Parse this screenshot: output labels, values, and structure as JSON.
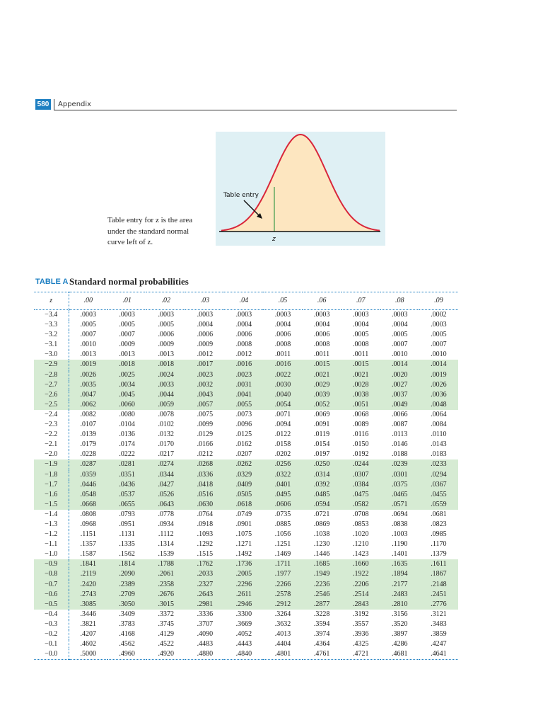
{
  "header": {
    "page_number": "580",
    "section": "Appendix"
  },
  "figure": {
    "label": "Table entry",
    "axis_label": "z",
    "caption": "Table entry for z is the area under the standard normal curve left of z."
  },
  "table": {
    "label": "TABLE A",
    "title": "Standard normal probabilities",
    "columns": [
      "z",
      ".00",
      ".01",
      ".02",
      ".03",
      ".04",
      ".05",
      ".06",
      ".07",
      ".08",
      ".09"
    ],
    "rows": [
      [
        "−3.4",
        ".0003",
        ".0003",
        ".0003",
        ".0003",
        ".0003",
        ".0003",
        ".0003",
        ".0003",
        ".0003",
        ".0002"
      ],
      [
        "−3.3",
        ".0005",
        ".0005",
        ".0005",
        ".0004",
        ".0004",
        ".0004",
        ".0004",
        ".0004",
        ".0004",
        ".0003"
      ],
      [
        "−3.2",
        ".0007",
        ".0007",
        ".0006",
        ".0006",
        ".0006",
        ".0006",
        ".0006",
        ".0005",
        ".0005",
        ".0005"
      ],
      [
        "−3.1",
        ".0010",
        ".0009",
        ".0009",
        ".0009",
        ".0008",
        ".0008",
        ".0008",
        ".0008",
        ".0007",
        ".0007"
      ],
      [
        "−3.0",
        ".0013",
        ".0013",
        ".0013",
        ".0012",
        ".0012",
        ".0011",
        ".0011",
        ".0011",
        ".0010",
        ".0010"
      ],
      [
        "−2.9",
        ".0019",
        ".0018",
        ".0018",
        ".0017",
        ".0016",
        ".0016",
        ".0015",
        ".0015",
        ".0014",
        ".0014"
      ],
      [
        "−2.8",
        ".0026",
        ".0025",
        ".0024",
        ".0023",
        ".0023",
        ".0022",
        ".0021",
        ".0021",
        ".0020",
        ".0019"
      ],
      [
        "−2.7",
        ".0035",
        ".0034",
        ".0033",
        ".0032",
        ".0031",
        ".0030",
        ".0029",
        ".0028",
        ".0027",
        ".0026"
      ],
      [
        "−2.6",
        ".0047",
        ".0045",
        ".0044",
        ".0043",
        ".0041",
        ".0040",
        ".0039",
        ".0038",
        ".0037",
        ".0036"
      ],
      [
        "−2.5",
        ".0062",
        ".0060",
        ".0059",
        ".0057",
        ".0055",
        ".0054",
        ".0052",
        ".0051",
        ".0049",
        ".0048"
      ],
      [
        "−2.4",
        ".0082",
        ".0080",
        ".0078",
        ".0075",
        ".0073",
        ".0071",
        ".0069",
        ".0068",
        ".0066",
        ".0064"
      ],
      [
        "−2.3",
        ".0107",
        ".0104",
        ".0102",
        ".0099",
        ".0096",
        ".0094",
        ".0091",
        ".0089",
        ".0087",
        ".0084"
      ],
      [
        "−2.2",
        ".0139",
        ".0136",
        ".0132",
        ".0129",
        ".0125",
        ".0122",
        ".0119",
        ".0116",
        ".0113",
        ".0110"
      ],
      [
        "−2.1",
        ".0179",
        ".0174",
        ".0170",
        ".0166",
        ".0162",
        ".0158",
        ".0154",
        ".0150",
        ".0146",
        ".0143"
      ],
      [
        "−2.0",
        ".0228",
        ".0222",
        ".0217",
        ".0212",
        ".0207",
        ".0202",
        ".0197",
        ".0192",
        ".0188",
        ".0183"
      ],
      [
        "−1.9",
        ".0287",
        ".0281",
        ".0274",
        ".0268",
        ".0262",
        ".0256",
        ".0250",
        ".0244",
        ".0239",
        ".0233"
      ],
      [
        "−1.8",
        ".0359",
        ".0351",
        ".0344",
        ".0336",
        ".0329",
        ".0322",
        ".0314",
        ".0307",
        ".0301",
        ".0294"
      ],
      [
        "−1.7",
        ".0446",
        ".0436",
        ".0427",
        ".0418",
        ".0409",
        ".0401",
        ".0392",
        ".0384",
        ".0375",
        ".0367"
      ],
      [
        "−1.6",
        ".0548",
        ".0537",
        ".0526",
        ".0516",
        ".0505",
        ".0495",
        ".0485",
        ".0475",
        ".0465",
        ".0455"
      ],
      [
        "−1.5",
        ".0668",
        ".0655",
        ".0643",
        ".0630",
        ".0618",
        ".0606",
        ".0594",
        ".0582",
        ".0571",
        ".0559"
      ],
      [
        "−1.4",
        ".0808",
        ".0793",
        ".0778",
        ".0764",
        ".0749",
        ".0735",
        ".0721",
        ".0708",
        ".0694",
        ".0681"
      ],
      [
        "−1.3",
        ".0968",
        ".0951",
        ".0934",
        ".0918",
        ".0901",
        ".0885",
        ".0869",
        ".0853",
        ".0838",
        ".0823"
      ],
      [
        "−1.2",
        ".1151",
        ".1131",
        ".1112",
        ".1093",
        ".1075",
        ".1056",
        ".1038",
        ".1020",
        ".1003",
        ".0985"
      ],
      [
        "−1.1",
        ".1357",
        ".1335",
        ".1314",
        ".1292",
        ".1271",
        ".1251",
        ".1230",
        ".1210",
        ".1190",
        ".1170"
      ],
      [
        "−1.0",
        ".1587",
        ".1562",
        ".1539",
        ".1515",
        ".1492",
        ".1469",
        ".1446",
        ".1423",
        ".1401",
        ".1379"
      ],
      [
        "−0.9",
        ".1841",
        ".1814",
        ".1788",
        ".1762",
        ".1736",
        ".1711",
        ".1685",
        ".1660",
        ".1635",
        ".1611"
      ],
      [
        "−0.8",
        ".2119",
        ".2090",
        ".2061",
        ".2033",
        ".2005",
        ".1977",
        ".1949",
        ".1922",
        ".1894",
        ".1867"
      ],
      [
        "−0.7",
        ".2420",
        ".2389",
        ".2358",
        ".2327",
        ".2296",
        ".2266",
        ".2236",
        ".2206",
        ".2177",
        ".2148"
      ],
      [
        "−0.6",
        ".2743",
        ".2709",
        ".2676",
        ".2643",
        ".2611",
        ".2578",
        ".2546",
        ".2514",
        ".2483",
        ".2451"
      ],
      [
        "−0.5",
        ".3085",
        ".3050",
        ".3015",
        ".2981",
        ".2946",
        ".2912",
        ".2877",
        ".2843",
        ".2810",
        ".2776"
      ],
      [
        "−0.4",
        ".3446",
        ".3409",
        ".3372",
        ".3336",
        ".3300",
        ".3264",
        ".3228",
        ".3192",
        ".3156",
        ".3121"
      ],
      [
        "−0.3",
        ".3821",
        ".3783",
        ".3745",
        ".3707",
        ".3669",
        ".3632",
        ".3594",
        ".3557",
        ".3520",
        ".3483"
      ],
      [
        "−0.2",
        ".4207",
        ".4168",
        ".4129",
        ".4090",
        ".4052",
        ".4013",
        ".3974",
        ".3936",
        ".3897",
        ".3859"
      ],
      [
        "−0.1",
        ".4602",
        ".4562",
        ".4522",
        ".4483",
        ".4443",
        ".4404",
        ".4364",
        ".4325",
        ".4286",
        ".4247"
      ],
      [
        "−0.0",
        ".5000",
        ".4960",
        ".4920",
        ".4880",
        ".4840",
        ".4801",
        ".4761",
        ".4721",
        ".4681",
        ".4641"
      ]
    ]
  }
}
